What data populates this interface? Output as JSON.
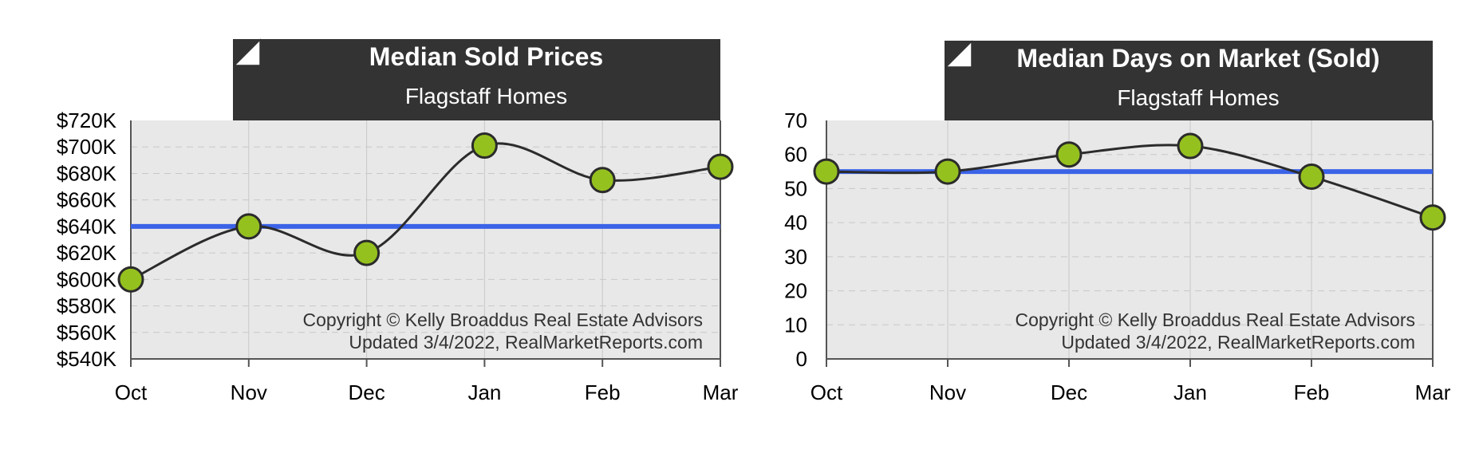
{
  "colors": {
    "banner_bg": "#333333",
    "banner_text": "#ffffff",
    "plot_bg": "#e8e8e8",
    "grid": "#c8c8c8",
    "line": "#2b2b2b",
    "marker_fill": "#95c11f",
    "marker_stroke": "#2b2b2b",
    "reference_line": "#3b63e8",
    "axis": "#555555",
    "tick_text": "#000000",
    "copyright_text": "#333333"
  },
  "chart_data": [
    {
      "type": "line",
      "title": "Median Sold Prices",
      "subtitle": "Flagstaff Homes",
      "categories": [
        "Oct",
        "Nov",
        "Dec",
        "Jan",
        "Feb",
        "Mar"
      ],
      "series": [
        {
          "values": [
            600000,
            640000,
            620000,
            701000,
            675000,
            685000
          ]
        }
      ],
      "reference_line": 640000,
      "ylim": [
        540000,
        720000
      ],
      "yticks": [
        540000,
        560000,
        580000,
        600000,
        620000,
        640000,
        660000,
        680000,
        700000,
        720000
      ],
      "ytick_labels": [
        "$540K",
        "$560K",
        "$580K",
        "$600K",
        "$620K",
        "$640K",
        "$660K",
        "$680K",
        "$700K",
        "$720K"
      ],
      "xlabel": "",
      "ylabel": "",
      "grid": true,
      "copyright": "Copyright © Kelly Broaddus Real Estate Advisors",
      "updated": "Updated 3/4/2022, RealMarketReports.com"
    },
    {
      "type": "line",
      "title": "Median Days on Market (Sold)",
      "subtitle": "Flagstaff Homes",
      "categories": [
        "Oct",
        "Nov",
        "Dec",
        "Jan",
        "Feb",
        "Mar"
      ],
      "series": [
        {
          "values": [
            55,
            55,
            60,
            62.5,
            53.5,
            41.5
          ]
        }
      ],
      "reference_line": 55,
      "ylim": [
        0,
        70
      ],
      "yticks": [
        0,
        10,
        20,
        30,
        40,
        50,
        60,
        70
      ],
      "ytick_labels": [
        "0",
        "10",
        "20",
        "30",
        "40",
        "50",
        "60",
        "70"
      ],
      "xlabel": "",
      "ylabel": "",
      "grid": true,
      "copyright": "Copyright © Kelly Broaddus Real Estate Advisors",
      "updated": "Updated 3/4/2022, RealMarketReports.com"
    }
  ]
}
